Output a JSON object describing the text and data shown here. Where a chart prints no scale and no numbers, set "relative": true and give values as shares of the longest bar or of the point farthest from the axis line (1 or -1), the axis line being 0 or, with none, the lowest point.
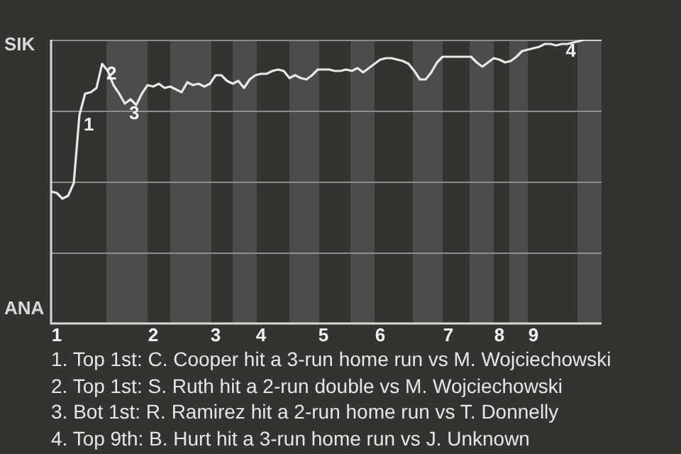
{
  "chart_data": {
    "type": "line",
    "relative": true,
    "legend": false,
    "annotations": [
      "SIK",
      "ANA",
      {
        "text": "1",
        "y": 0.735
      },
      {
        "text": "2",
        "y": 0.915
      },
      {
        "text": "3",
        "y": 0.775
      },
      {
        "text": "4",
        "y": 0.995
      },
      "1. Top 1st: C. Cooper hit a 3-run home run vs M. Wojciechowski",
      "2. Top 1st: S. Ruth hit a 2-run double vs M. Wojciechowski",
      "3. Bot 1st: R. Ramirez hit a 2-run home run vs T. Donnelly",
      "4. Top 9th: B. Hurt hit a 3-run home run vs J. Unknown"
    ],
    "categories": [
      null,
      "1",
      null,
      null,
      null,
      null,
      null,
      null,
      null,
      null,
      null,
      null,
      null,
      null,
      null,
      null,
      null,
      null,
      "2",
      null,
      null,
      null,
      null,
      null,
      null,
      null,
      null,
      null,
      null,
      "3",
      null,
      null,
      null,
      null,
      null,
      null,
      null,
      "4",
      null,
      null,
      null,
      null,
      null,
      null,
      null,
      null,
      null,
      null,
      "5",
      null,
      null,
      null,
      null,
      null,
      null,
      null,
      null,
      null,
      "6",
      null,
      null,
      null,
      null,
      null,
      null,
      null,
      null,
      null,
      null,
      null,
      "7",
      null,
      null,
      null,
      null,
      null,
      null,
      null,
      null,
      "8",
      null,
      null,
      null,
      null,
      null,
      "9",
      null,
      null,
      null,
      null,
      null,
      null,
      null,
      null,
      null,
      null,
      null,
      null
    ],
    "series": [
      {
        "color": "#e8e8e8",
        "values": [
          0.465,
          0.46,
          0.44,
          0.45,
          0.495,
          0.735,
          0.81,
          0.815,
          0.83,
          0.915,
          0.89,
          0.84,
          0.81,
          0.775,
          0.79,
          0.77,
          0.81,
          0.84,
          0.835,
          0.845,
          0.83,
          0.835,
          0.825,
          0.815,
          0.85,
          0.84,
          0.845,
          0.835,
          0.845,
          0.875,
          0.875,
          0.855,
          0.845,
          0.855,
          0.83,
          0.86,
          0.875,
          0.88,
          0.88,
          0.89,
          0.895,
          0.89,
          0.865,
          0.875,
          0.865,
          0.86,
          0.875,
          0.895,
          0.895,
          0.895,
          0.89,
          0.89,
          0.895,
          0.89,
          0.9,
          0.885,
          0.9,
          0.915,
          0.93,
          0.935,
          0.935,
          0.93,
          0.925,
          0.915,
          0.89,
          0.86,
          0.86,
          0.885,
          0.92,
          0.94,
          0.94,
          0.94,
          0.94,
          0.94,
          0.94,
          0.92,
          0.905,
          0.92,
          0.935,
          0.93,
          0.92,
          0.925,
          0.94,
          0.96,
          0.965,
          0.97,
          0.975,
          0.985,
          0.985,
          0.98,
          0.985,
          0.985,
          0.99,
          0.995,
          1,
          1,
          1,
          1
        ]
      }
    ],
    "ref_lines": [
      {
        "axis": "y",
        "value": 0.25,
        "color": "#8c8c8a"
      },
      {
        "axis": "y",
        "value": 0.5,
        "color": "#8c8c8a"
      },
      {
        "axis": "y",
        "value": 0.75,
        "color": "#8c8c8a"
      },
      {
        "axis": "y",
        "value": 1,
        "color": "#8c8c8a"
      }
    ]
  }
}
